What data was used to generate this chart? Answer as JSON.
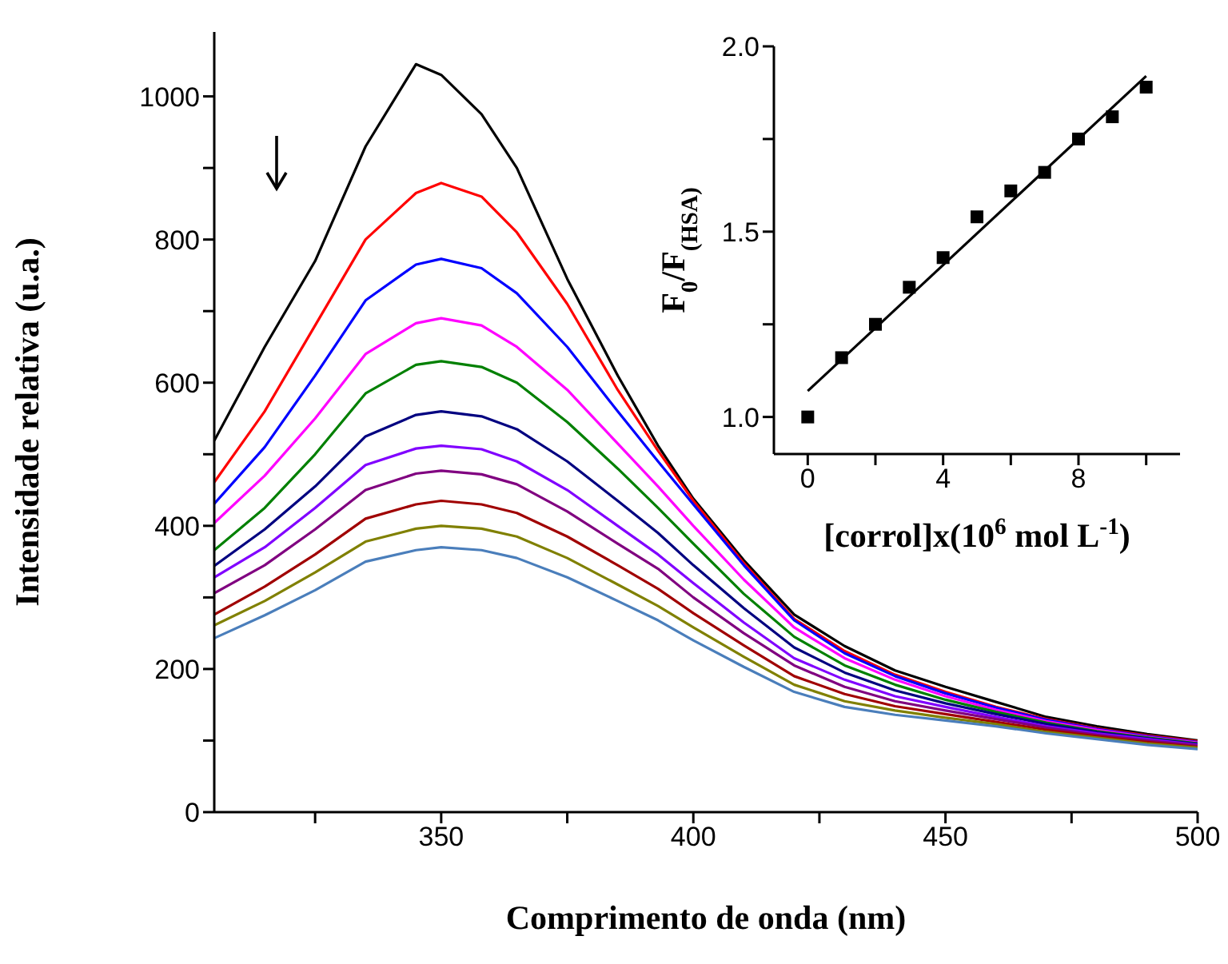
{
  "chart_data": [
    {
      "type": "line",
      "xlabel": "Comprimento de onda (nm)",
      "ylabel": "Intensidade relativa (u.a.)",
      "x": [
        305,
        315,
        325,
        335,
        345,
        350,
        358,
        365,
        375,
        385,
        393,
        400,
        410,
        420,
        430,
        440,
        450,
        460,
        470,
        480,
        490,
        500
      ],
      "series": [
        {
          "color": "#000000",
          "values": [
            519,
            650,
            770,
            930,
            1045,
            1030,
            975,
            900,
            745,
            610,
            512,
            438,
            352,
            276,
            232,
            198,
            175,
            154,
            133,
            120,
            109,
            100
          ]
        },
        {
          "color": "#ff0000",
          "values": [
            461,
            560,
            680,
            800,
            865,
            879,
            860,
            810,
            710,
            590,
            505,
            435,
            348,
            270,
            225,
            192,
            168,
            147,
            130,
            117,
            107,
            99
          ]
        },
        {
          "color": "#0000ff",
          "values": [
            431,
            510,
            610,
            715,
            765,
            773,
            760,
            725,
            650,
            560,
            490,
            430,
            345,
            268,
            222,
            190,
            166,
            146,
            129,
            116,
            106,
            98
          ]
        },
        {
          "color": "#ff00ff",
          "values": [
            404,
            470,
            550,
            640,
            683,
            690,
            680,
            650,
            590,
            515,
            455,
            400,
            325,
            258,
            215,
            185,
            162,
            143,
            127,
            115,
            105,
            97
          ]
        },
        {
          "color": "#008000",
          "values": [
            366,
            425,
            500,
            585,
            625,
            630,
            622,
            600,
            545,
            480,
            425,
            375,
            305,
            245,
            205,
            178,
            157,
            140,
            125,
            113,
            104,
            96
          ]
        },
        {
          "color": "#000080",
          "values": [
            344,
            395,
            455,
            525,
            555,
            560,
            553,
            535,
            490,
            435,
            390,
            345,
            285,
            230,
            195,
            170,
            152,
            137,
            123,
            112,
            103,
            95
          ]
        },
        {
          "color": "#8000ff",
          "values": [
            328,
            370,
            425,
            485,
            508,
            512,
            507,
            490,
            450,
            400,
            360,
            320,
            265,
            215,
            185,
            162,
            147,
            133,
            120,
            110,
            102,
            94
          ]
        },
        {
          "color": "#800080",
          "values": [
            306,
            345,
            395,
            450,
            473,
            477,
            472,
            458,
            420,
            375,
            340,
            300,
            250,
            205,
            175,
            155,
            142,
            130,
            118,
            108,
            100,
            93
          ]
        },
        {
          "color": "#a00000",
          "values": [
            276,
            315,
            360,
            410,
            430,
            435,
            430,
            418,
            385,
            345,
            312,
            278,
            233,
            190,
            165,
            148,
            137,
            126,
            115,
            106,
            98,
            91
          ]
        },
        {
          "color": "#808000",
          "values": [
            261,
            295,
            335,
            378,
            396,
            400,
            396,
            385,
            355,
            318,
            288,
            258,
            217,
            178,
            155,
            142,
            132,
            123,
            112,
            104,
            96,
            90
          ]
        },
        {
          "color": "#4a7ebb",
          "values": [
            243,
            275,
            310,
            350,
            366,
            370,
            366,
            355,
            328,
            295,
            268,
            240,
            203,
            168,
            147,
            136,
            128,
            120,
            110,
            102,
            94,
            88
          ]
        }
      ],
      "xlim": [
        305,
        500
      ],
      "xticks": [
        {
          "value": 325,
          "label": null
        },
        350,
        {
          "value": 375,
          "label": null
        },
        400,
        {
          "value": 425,
          "label": null
        },
        450,
        {
          "value": 475,
          "label": null
        },
        500
      ],
      "ylim": [
        0,
        1090
      ],
      "yticks": [
        0,
        {
          "value": 100,
          "label": null
        },
        200,
        {
          "value": 300,
          "label": null
        },
        400,
        {
          "value": 500,
          "label": null
        },
        600,
        {
          "value": 700,
          "label": null
        },
        800,
        {
          "value": 900,
          "label": null
        },
        1000
      ],
      "marker": "none",
      "line_style": "solid"
    },
    {
      "type": "scatter",
      "xlabel": "[corrol]x(10$^{6}$ mol L$^{-1}$)",
      "ylabel": "F$_{0}$/F$_{(HSA)}$",
      "series": [
        {
          "marker": "square",
          "color": "#000000",
          "x": [
            0,
            1,
            2,
            3,
            4,
            5,
            6,
            7,
            8,
            9,
            10
          ],
          "values": [
            1.0,
            1.16,
            1.25,
            1.35,
            1.43,
            1.54,
            1.61,
            1.66,
            1.75,
            1.81,
            1.89
          ]
        },
        {
          "type": "line",
          "color": "#000000",
          "x": [
            0,
            10
          ],
          "values": [
            1.07,
            1.92
          ]
        }
      ],
      "xlim": [
        -1,
        11
      ],
      "xticks": [
        0,
        {
          "value": 2,
          "label": null
        },
        4,
        {
          "value": 6,
          "label": null
        },
        8,
        {
          "value": 10,
          "label": null
        }
      ],
      "ylim": [
        0.9,
        2.0
      ],
      "yticks": [
        {
          "value": 1,
          "label": "1.0"
        },
        {
          "value": 1.25,
          "label": null
        },
        1.5,
        {
          "value": 1.75,
          "label": null
        },
        {
          "value": 2,
          "label": "2.0"
        }
      ],
      "line_style": "solid"
    }
  ]
}
